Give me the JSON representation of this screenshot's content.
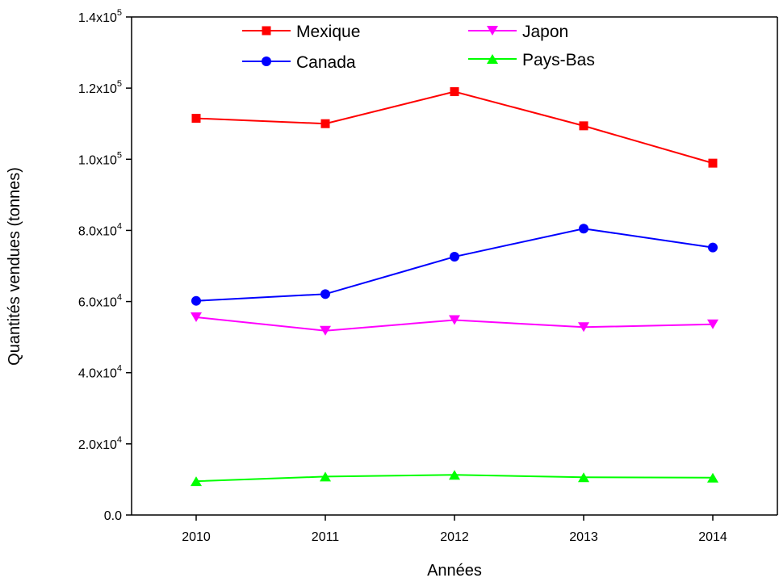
{
  "chart_data": {
    "type": "line",
    "title": "",
    "xlabel": "Années",
    "ylabel": "Quantités vendues (tonnes)",
    "x": [
      2010,
      2011,
      2012,
      2013,
      2014
    ],
    "xlim": [
      2009.5,
      2014.5
    ],
    "ylim": [
      0,
      140000
    ],
    "y_ticks": [
      {
        "value": 0,
        "mantissa": "0.0",
        "exp": ""
      },
      {
        "value": 20000,
        "mantissa": "2.0x10",
        "exp": "4"
      },
      {
        "value": 40000,
        "mantissa": "4.0x10",
        "exp": "4"
      },
      {
        "value": 60000,
        "mantissa": "6.0x10",
        "exp": "4"
      },
      {
        "value": 80000,
        "mantissa": "8.0x10",
        "exp": "4"
      },
      {
        "value": 100000,
        "mantissa": "1.0x10",
        "exp": "5"
      },
      {
        "value": 120000,
        "mantissa": "1.2x10",
        "exp": "5"
      },
      {
        "value": 140000,
        "mantissa": "1.4x10",
        "exp": "5"
      }
    ],
    "grid": false,
    "legend_position": "top",
    "series": [
      {
        "name": "Mexique",
        "color": "#ff0000",
        "marker": "square",
        "values": [
          111500,
          110000,
          119000,
          109400,
          98900
        ]
      },
      {
        "name": "Canada",
        "color": "#0000ff",
        "marker": "circle",
        "values": [
          60200,
          62100,
          72600,
          80500,
          75200
        ]
      },
      {
        "name": "Japon",
        "color": "#ff00ff",
        "marker": "triangle-down",
        "values": [
          55600,
          51800,
          54800,
          52800,
          53600
        ]
      },
      {
        "name": "Pays-Bas",
        "color": "#00ff00",
        "marker": "triangle-up",
        "values": [
          9500,
          10800,
          11300,
          10600,
          10500
        ]
      }
    ]
  }
}
